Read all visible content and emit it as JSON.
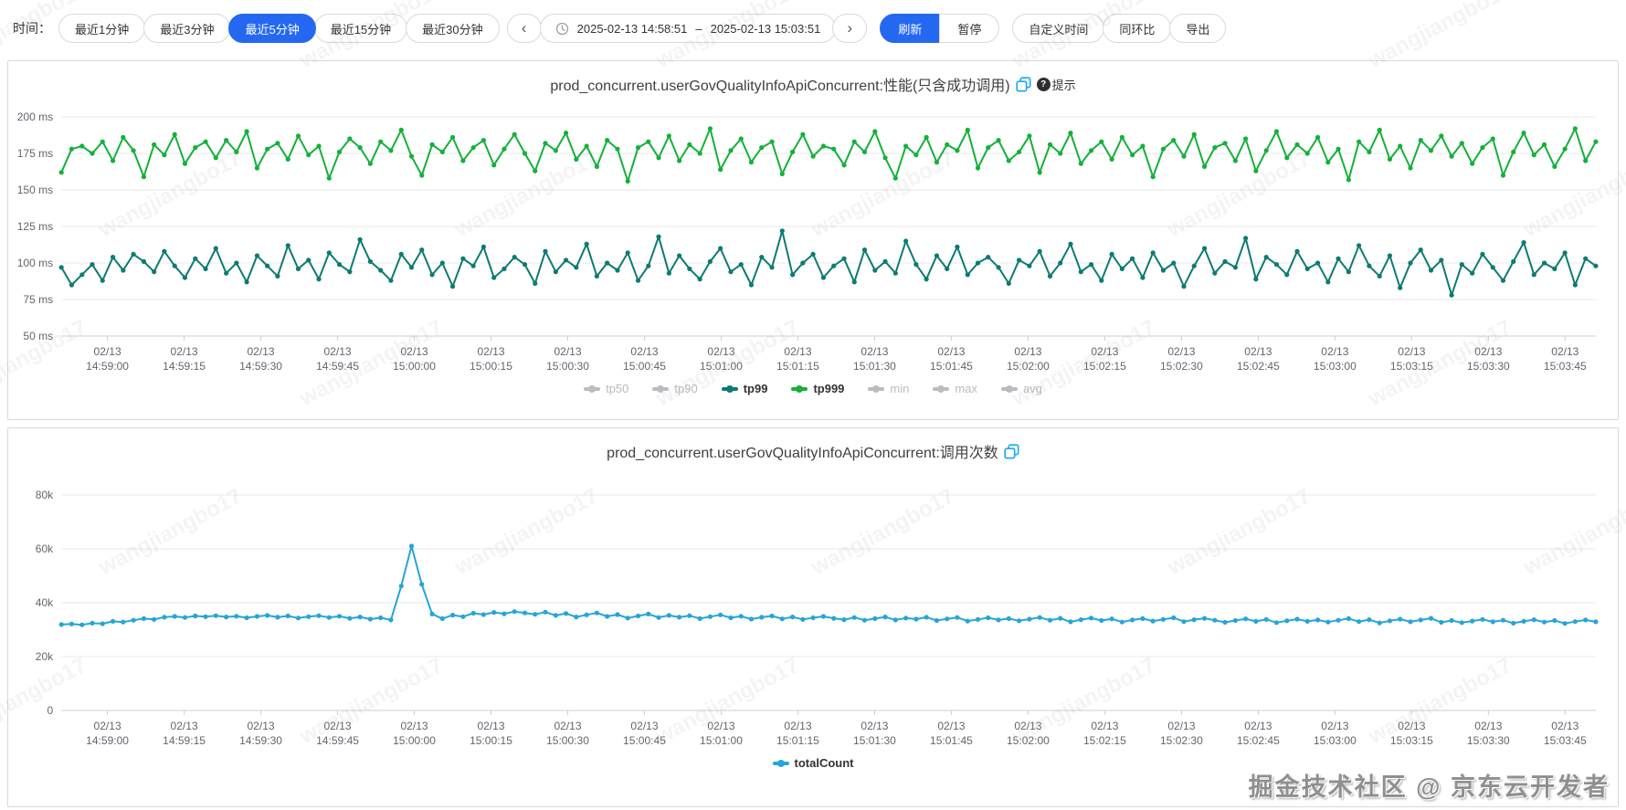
{
  "accent_color": "#2468f2",
  "watermark": {
    "tile_text": "wangjiangbo17",
    "footer_text": "掘金技术社区 @ 京东云开发者"
  },
  "toolbar": {
    "time_label": "时间：",
    "range_buttons": [
      {
        "label": "最近1分钟",
        "active": false
      },
      {
        "label": "最近3分钟",
        "active": false
      },
      {
        "label": "最近5分钟",
        "active": true
      },
      {
        "label": "最近15分钟",
        "active": false
      },
      {
        "label": "最近30分钟",
        "active": false
      }
    ],
    "prev_icon": "‹",
    "next_icon": "›",
    "datetime_start": "2025-02-13 14:58:51",
    "datetime_separator": "–",
    "datetime_end": "2025-02-13 15:03:51",
    "refresh_label": "刷新",
    "pause_label": "暂停",
    "extra_buttons": [
      "自定义时间",
      "同环比",
      "导出"
    ]
  },
  "time_axis": {
    "ticks": [
      {
        "date": "02/13",
        "time": "14:59:00"
      },
      {
        "date": "02/13",
        "time": "14:59:15"
      },
      {
        "date": "02/13",
        "time": "14:59:30"
      },
      {
        "date": "02/13",
        "time": "14:59:45"
      },
      {
        "date": "02/13",
        "time": "15:00:00"
      },
      {
        "date": "02/13",
        "time": "15:00:15"
      },
      {
        "date": "02/13",
        "time": "15:00:30"
      },
      {
        "date": "02/13",
        "time": "15:00:45"
      },
      {
        "date": "02/13",
        "time": "15:01:00"
      },
      {
        "date": "02/13",
        "time": "15:01:15"
      },
      {
        "date": "02/13",
        "time": "15:01:30"
      },
      {
        "date": "02/13",
        "time": "15:01:45"
      },
      {
        "date": "02/13",
        "time": "15:02:00"
      },
      {
        "date": "02/13",
        "time": "15:02:15"
      },
      {
        "date": "02/13",
        "time": "15:02:30"
      },
      {
        "date": "02/13",
        "time": "15:02:45"
      },
      {
        "date": "02/13",
        "time": "15:03:00"
      },
      {
        "date": "02/13",
        "time": "15:03:15"
      },
      {
        "date": "02/13",
        "time": "15:03:30"
      },
      {
        "date": "02/13",
        "time": "15:03:45"
      }
    ]
  },
  "charts": [
    {
      "type": "line",
      "title": "prod_concurrent.userGovQualityInfoApiConcurrent:性能(只含成功调用)",
      "has_hint": true,
      "hint_label": "提示",
      "ylim": [
        50,
        200
      ],
      "y_values": [
        200,
        175,
        150,
        125,
        100,
        75,
        50
      ],
      "y_ticks": [
        "200 ms",
        "175 ms",
        "150 ms",
        "125 ms",
        "100 ms",
        "75 ms",
        "50 ms"
      ],
      "legend": [
        {
          "label": "tp50",
          "color": "#b9bcc2",
          "active": false
        },
        {
          "label": "tp90",
          "color": "#b9bcc2",
          "active": false
        },
        {
          "label": "tp99",
          "color": "#0d7b72",
          "active": true
        },
        {
          "label": "tp999",
          "color": "#14b13a",
          "active": true
        },
        {
          "label": "min",
          "color": "#b9bcc2",
          "active": false
        },
        {
          "label": "max",
          "color": "#b9bcc2",
          "active": false
        },
        {
          "label": "avg",
          "color": "#b9bcc2",
          "active": false
        }
      ],
      "series": [
        {
          "name": "tp99",
          "color": "#0d7b72",
          "values": [
            97,
            85,
            92,
            99,
            88,
            104,
            95,
            106,
            101,
            94,
            108,
            98,
            90,
            103,
            96,
            110,
            93,
            100,
            87,
            105,
            98,
            91,
            112,
            96,
            102,
            89,
            107,
            99,
            94,
            116,
            101,
            95,
            88,
            106,
            97,
            109,
            92,
            100,
            84,
            103,
            98,
            111,
            90,
            96,
            104,
            99,
            86,
            108,
            94,
            102,
            97,
            113,
            91,
            100,
            95,
            107,
            88,
            98,
            118,
            93,
            105,
            96,
            89,
            101,
            110,
            94,
            99,
            85,
            104,
            97,
            122,
            92,
            100,
            106,
            90,
            98,
            103,
            87,
            109,
            95,
            101,
            93,
            115,
            99,
            89,
            105,
            96,
            111,
            92,
            100,
            104,
            97,
            86,
            102,
            98,
            108,
            91,
            100,
            113,
            94,
            99,
            88,
            106,
            96,
            103,
            90,
            107,
            95,
            100,
            84,
            98,
            110,
            93,
            101,
            97,
            117,
            89,
            104,
            99,
            92,
            108,
            96,
            100,
            87,
            103,
            94,
            112,
            98,
            91,
            105,
            83,
            100,
            109,
            95,
            102,
            78,
            99,
            93,
            106,
            97,
            88,
            101,
            114,
            92,
            100,
            96,
            107,
            85,
            103,
            98
          ]
        },
        {
          "name": "tp999",
          "color": "#14b13a",
          "values": [
            162,
            178,
            180,
            175,
            183,
            170,
            186,
            177,
            159,
            181,
            174,
            188,
            168,
            179,
            183,
            172,
            184,
            176,
            190,
            165,
            178,
            182,
            171,
            187,
            174,
            180,
            158,
            176,
            185,
            179,
            168,
            183,
            177,
            191,
            173,
            160,
            181,
            176,
            186,
            170,
            179,
            184,
            167,
            178,
            188,
            175,
            163,
            182,
            177,
            189,
            171,
            180,
            166,
            184,
            178,
            156,
            179,
            183,
            172,
            187,
            170,
            181,
            175,
            192,
            164,
            177,
            185,
            169,
            179,
            183,
            161,
            176,
            188,
            173,
            180,
            178,
            167,
            183,
            176,
            190,
            172,
            158,
            180,
            174,
            186,
            169,
            181,
            177,
            191,
            165,
            179,
            184,
            170,
            176,
            187,
            162,
            181,
            175,
            189,
            168,
            177,
            183,
            171,
            186,
            174,
            180,
            159,
            178,
            184,
            173,
            188,
            166,
            179,
            182,
            170,
            185,
            163,
            177,
            190,
            172,
            181,
            175,
            186,
            169,
            178,
            157,
            183,
            176,
            191,
            171,
            180,
            165,
            184,
            177,
            187,
            173,
            182,
            168,
            179,
            185,
            160,
            176,
            189,
            174,
            181,
            166,
            178,
            192,
            170,
            183
          ]
        }
      ]
    },
    {
      "type": "line",
      "title": "prod_concurrent.userGovQualityInfoApiConcurrent:调用次数",
      "has_hint": false,
      "ylim": [
        0,
        80000
      ],
      "y_values": [
        80000,
        60000,
        40000,
        20000,
        0
      ],
      "y_ticks": [
        "80k",
        "60k",
        "40k",
        "20k",
        "0"
      ],
      "legend": [
        {
          "label": "totalCount",
          "color": "#27a5d6",
          "active": true
        }
      ],
      "series": [
        {
          "name": "totalCount",
          "color": "#27a5d6",
          "values": [
            31900,
            32100,
            31800,
            32400,
            32200,
            33100,
            32800,
            33500,
            34100,
            33800,
            34600,
            34900,
            34500,
            35100,
            34800,
            35200,
            34700,
            35000,
            34400,
            34900,
            35300,
            34600,
            35100,
            34300,
            34800,
            35200,
            34500,
            35000,
            34200,
            34700,
            33900,
            34400,
            33600,
            46200,
            61000,
            46800,
            35800,
            34100,
            35400,
            34800,
            36100,
            35600,
            36400,
            35900,
            36700,
            36200,
            35700,
            36500,
            35300,
            36000,
            34700,
            35500,
            36200,
            34900,
            35600,
            34300,
            35100,
            35800,
            34500,
            35300,
            34600,
            35200,
            34100,
            34800,
            35500,
            34400,
            35000,
            33900,
            34600,
            35100,
            34000,
            34700,
            33800,
            34400,
            34900,
            34200,
            33700,
            34500,
            33500,
            34100,
            34700,
            33600,
            34300,
            33900,
            34600,
            33400,
            34000,
            34500,
            33200,
            33800,
            34400,
            33600,
            34100,
            33300,
            33900,
            34500,
            33500,
            34200,
            32900,
            33700,
            34300,
            33400,
            34000,
            32800,
            33600,
            34100,
            33200,
            33800,
            34400,
            33000,
            33700,
            34200,
            33500,
            32700,
            33400,
            34000,
            33100,
            33800,
            32600,
            33300,
            33900,
            33100,
            33600,
            32800,
            33500,
            34100,
            33000,
            33700,
            32500,
            33300,
            33900,
            32900,
            33600,
            34200,
            32700,
            33400,
            32600,
            33200,
            33800,
            32900,
            33500,
            32400,
            33100,
            33700,
            32800,
            33400,
            32300,
            33000,
            33600,
            32900
          ]
        }
      ]
    }
  ]
}
